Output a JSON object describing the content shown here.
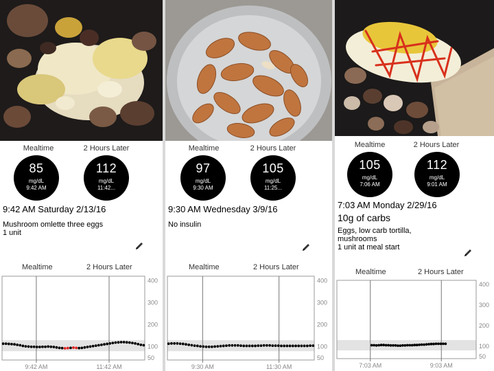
{
  "colors": {
    "bubble": "#000000",
    "band": "#e3e3e3",
    "dot": "#000000",
    "low_dot": "#e02020",
    "grid": "#9a9a9a"
  },
  "panels": [
    {
      "photo_icon": "omelette-with-mushrooms-photo",
      "mealtime_label": "Mealtime",
      "later_label": "2 Hours Later",
      "mealtime_reading": {
        "value": "85",
        "unit": "mg/dL",
        "time": "9:42 AM"
      },
      "later_reading": {
        "value": "112",
        "unit": "mg/dL",
        "time": "11:42..."
      },
      "datetime": "9:42 AM Saturday 2/13/16",
      "carbs": "",
      "note_lines": [
        "Mushroom omlette three eggs",
        "1 unit"
      ],
      "edit_icon": "pencil-icon",
      "chart_head": {
        "left": "Mealtime",
        "right": "2 Hours Later"
      }
    },
    {
      "photo_icon": "bowl-of-almonds-photo",
      "mealtime_label": "Mealtime",
      "later_label": "2 Hours Later",
      "mealtime_reading": {
        "value": "97",
        "unit": "mg/dL",
        "time": "9:30 AM"
      },
      "later_reading": {
        "value": "105",
        "unit": "mg/dL",
        "time": "11:25..."
      },
      "datetime": "9:30 AM Wednesday 3/9/16",
      "carbs": "",
      "note_lines": [
        "No insulin"
      ],
      "edit_icon": "pencil-icon",
      "chart_head": {
        "left": "Mealtime",
        "right": "2 Hours Later"
      }
    },
    {
      "photo_icon": "eggs-tortilla-mushrooms-photo",
      "mealtime_label": "Mealtime",
      "later_label": "2 Hours Later",
      "mealtime_reading": {
        "value": "105",
        "unit": "mg/dL",
        "time": "7:06 AM"
      },
      "later_reading": {
        "value": "112",
        "unit": "mg/dL",
        "time": "9:01 AM"
      },
      "datetime": "7:03 AM Monday 2/29/16",
      "carbs": "10g of carbs",
      "note_lines": [
        "Eggs, low carb tortilla,",
        "mushrooms",
        "1 unit at meal start"
      ],
      "edit_icon": "pencil-icon",
      "chart_head": {
        "left": "Mealtime",
        "right": "2 Hours Later"
      }
    }
  ],
  "chart_data": [
    {
      "type": "scatter",
      "ylim": [
        40,
        420
      ],
      "yticks": [
        400,
        300,
        200,
        100,
        50
      ],
      "target_band": [
        80,
        130
      ],
      "xlim": [
        0,
        100
      ],
      "x_ticks": [
        {
          "x": 24,
          "label": "9:42 AM"
        },
        {
          "x": 75,
          "label": "11:42 AM"
        }
      ],
      "values": [
        114,
        114,
        113,
        112,
        111,
        109,
        107,
        104,
        102,
        101,
        100,
        100,
        99,
        99,
        100,
        100,
        101,
        100,
        99,
        97,
        95,
        94,
        93,
        94,
        95,
        96,
        95,
        94,
        95,
        97,
        99,
        101,
        103,
        105,
        107,
        109,
        111,
        113,
        115,
        117,
        119,
        120,
        121,
        121,
        120,
        119,
        117,
        115,
        112,
        109,
        107
      ],
      "low_indices": [
        22,
        23,
        25,
        26
      ]
    },
    {
      "type": "scatter",
      "ylim": [
        40,
        420
      ],
      "yticks": [
        400,
        300,
        200,
        100,
        50
      ],
      "target_band": [
        80,
        130
      ],
      "xlim": [
        0,
        100
      ],
      "x_ticks": [
        {
          "x": 24,
          "label": "9:30 AM"
        },
        {
          "x": 76,
          "label": "11:30 AM"
        }
      ],
      "values": [
        114,
        115,
        115,
        115,
        114,
        113,
        111,
        109,
        107,
        105,
        104,
        102,
        101,
        100,
        100,
        100,
        101,
        102,
        103,
        104,
        105,
        106,
        106,
        106,
        106,
        105,
        104,
        104,
        104,
        104,
        104,
        105,
        105,
        106,
        106,
        106,
        105,
        105,
        105,
        104,
        104,
        104,
        104,
        104,
        104,
        104,
        104,
        104,
        104,
        105,
        105
      ],
      "low_indices": []
    },
    {
      "type": "scatter",
      "ylim": [
        40,
        420
      ],
      "yticks": [
        400,
        300,
        200,
        100,
        50
      ],
      "target_band": [
        80,
        130
      ],
      "xlim": [
        0,
        100
      ],
      "x_ticks": [
        {
          "x": 24,
          "label": "7:03 AM"
        },
        {
          "x": 75,
          "label": "9:03 AM"
        }
      ],
      "x_start": 25,
      "x_end": 78,
      "values": [
        105,
        105,
        104,
        105,
        106,
        106,
        105,
        105,
        104,
        104,
        104,
        103,
        103,
        104,
        104,
        105,
        105,
        105,
        106,
        106,
        107,
        108,
        108,
        109,
        110,
        111,
        111,
        112,
        112,
        112,
        112,
        112
      ],
      "low_indices": []
    }
  ]
}
